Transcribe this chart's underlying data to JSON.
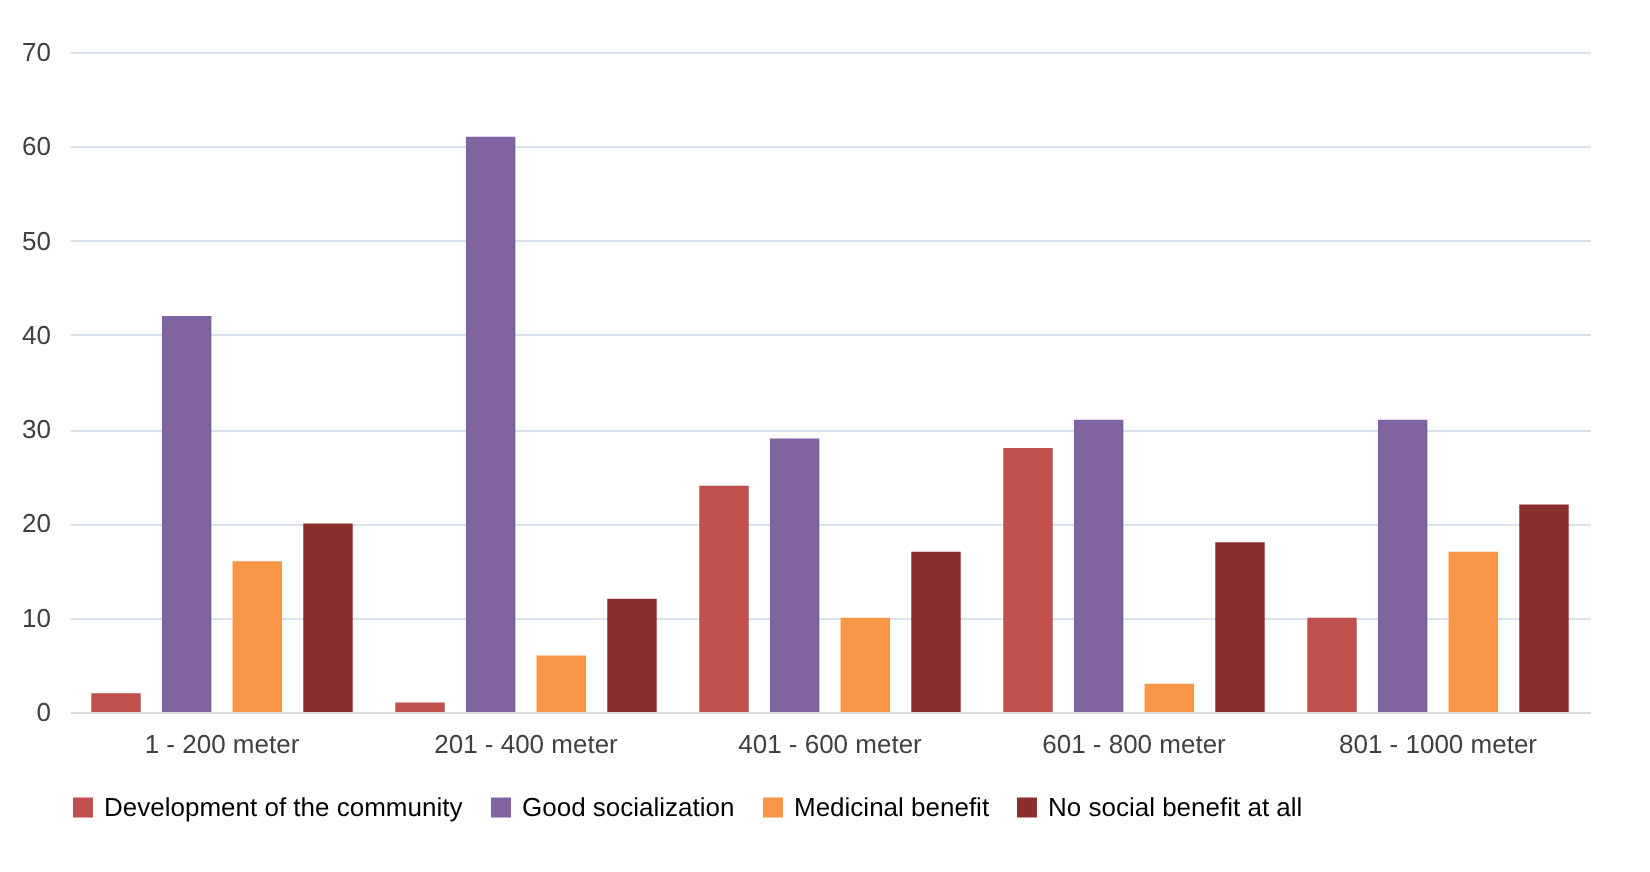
{
  "chart_data": {
    "type": "bar",
    "categories": [
      "1 -  200 meter",
      "201 - 400 meter",
      "401 - 600 meter",
      "601 - 800 meter",
      "801 - 1000 meter"
    ],
    "series": [
      {
        "name": "Development of the community",
        "color": "#c0504d",
        "values": [
          2,
          1,
          24,
          28,
          10
        ]
      },
      {
        "name": "Good socialization",
        "color": "#8064a2",
        "values": [
          42,
          61,
          29,
          31,
          31
        ]
      },
      {
        "name": "Medicinal benefit",
        "color": "#f79646",
        "values": [
          16,
          6,
          10,
          3,
          17
        ]
      },
      {
        "name": "No social benefit at all",
        "color": "#8b2e2e",
        "values": [
          20,
          12,
          17,
          18,
          22
        ]
      }
    ],
    "ylim": [
      0,
      70
    ],
    "yticks": [
      0,
      10,
      20,
      30,
      40,
      50,
      60,
      70
    ],
    "grid": "y",
    "legend": "bottom"
  }
}
